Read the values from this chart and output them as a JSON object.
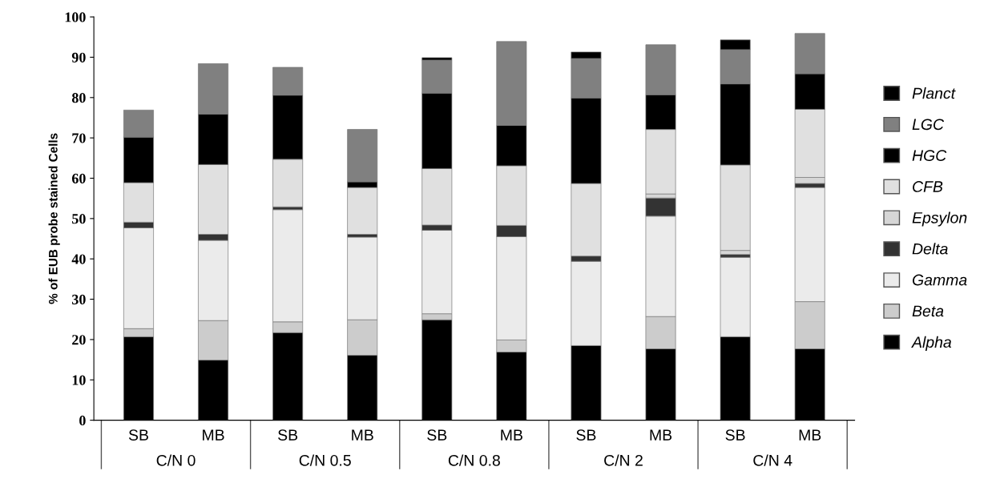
{
  "chart_data": {
    "type": "bar",
    "stacked": true,
    "ylabel": "% of EUB probe stained Cells",
    "categories": [
      "SB",
      "MB",
      "SB",
      "MB",
      "SB",
      "MB",
      "SB",
      "MB",
      "SB",
      "MB"
    ],
    "annotations": [
      "C/N 0",
      "C/N 0.5",
      "C/N 0.8",
      "C/N 2",
      "C/N 4"
    ],
    "ylim": [
      0,
      100
    ],
    "yticks": [
      0,
      10,
      20,
      30,
      40,
      50,
      60,
      70,
      80,
      90,
      100
    ],
    "grid": false,
    "legend": "right",
    "series": [
      {
        "name": "Alpha",
        "color": "#000000",
        "values": [
          20.7,
          14.9,
          21.7,
          16.1,
          24.9,
          16.9,
          18.5,
          17.7,
          20.7,
          17.7
        ]
      },
      {
        "name": "Beta",
        "color": "#cccccc",
        "values": [
          2.0,
          9.8,
          2.7,
          8.8,
          1.5,
          3.0,
          0,
          8.0,
          0,
          11.7
        ]
      },
      {
        "name": "Gamma",
        "color": "#ebebeb",
        "values": [
          25.0,
          19.9,
          27.8,
          20.5,
          20.7,
          25.6,
          20.9,
          24.9,
          19.7,
          28.3
        ]
      },
      {
        "name": "Delta",
        "color": "#333333",
        "values": [
          1.4,
          1.5,
          0.7,
          0.7,
          1.3,
          2.8,
          1.3,
          4.5,
          0.7,
          1.0
        ]
      },
      {
        "name": "Epsylon",
        "color": "#d6d6d6",
        "values": [
          0,
          0,
          0,
          0,
          0,
          0,
          0,
          1.0,
          1.0,
          1.5
        ]
      },
      {
        "name": "CFB",
        "color": "#e0e0e0",
        "values": [
          9.8,
          17.3,
          11.8,
          11.6,
          14.0,
          14.8,
          18.0,
          16.0,
          21.2,
          16.9
        ]
      },
      {
        "name": "HGC",
        "color": "#000000",
        "values": [
          11.3,
          12.5,
          15.9,
          1.4,
          18.7,
          10.0,
          21.2,
          8.6,
          20.1,
          8.8
        ]
      },
      {
        "name": "LGC",
        "color": "#808080",
        "values": [
          6.7,
          12.5,
          6.9,
          13.0,
          8.2,
          20.8,
          9.8,
          12.4,
          8.5,
          10.0
        ]
      },
      {
        "name": "Planct",
        "color": "#000000",
        "values": [
          0,
          0,
          0,
          0,
          0.6,
          0,
          1.6,
          0,
          2.4,
          0
        ]
      }
    ]
  }
}
